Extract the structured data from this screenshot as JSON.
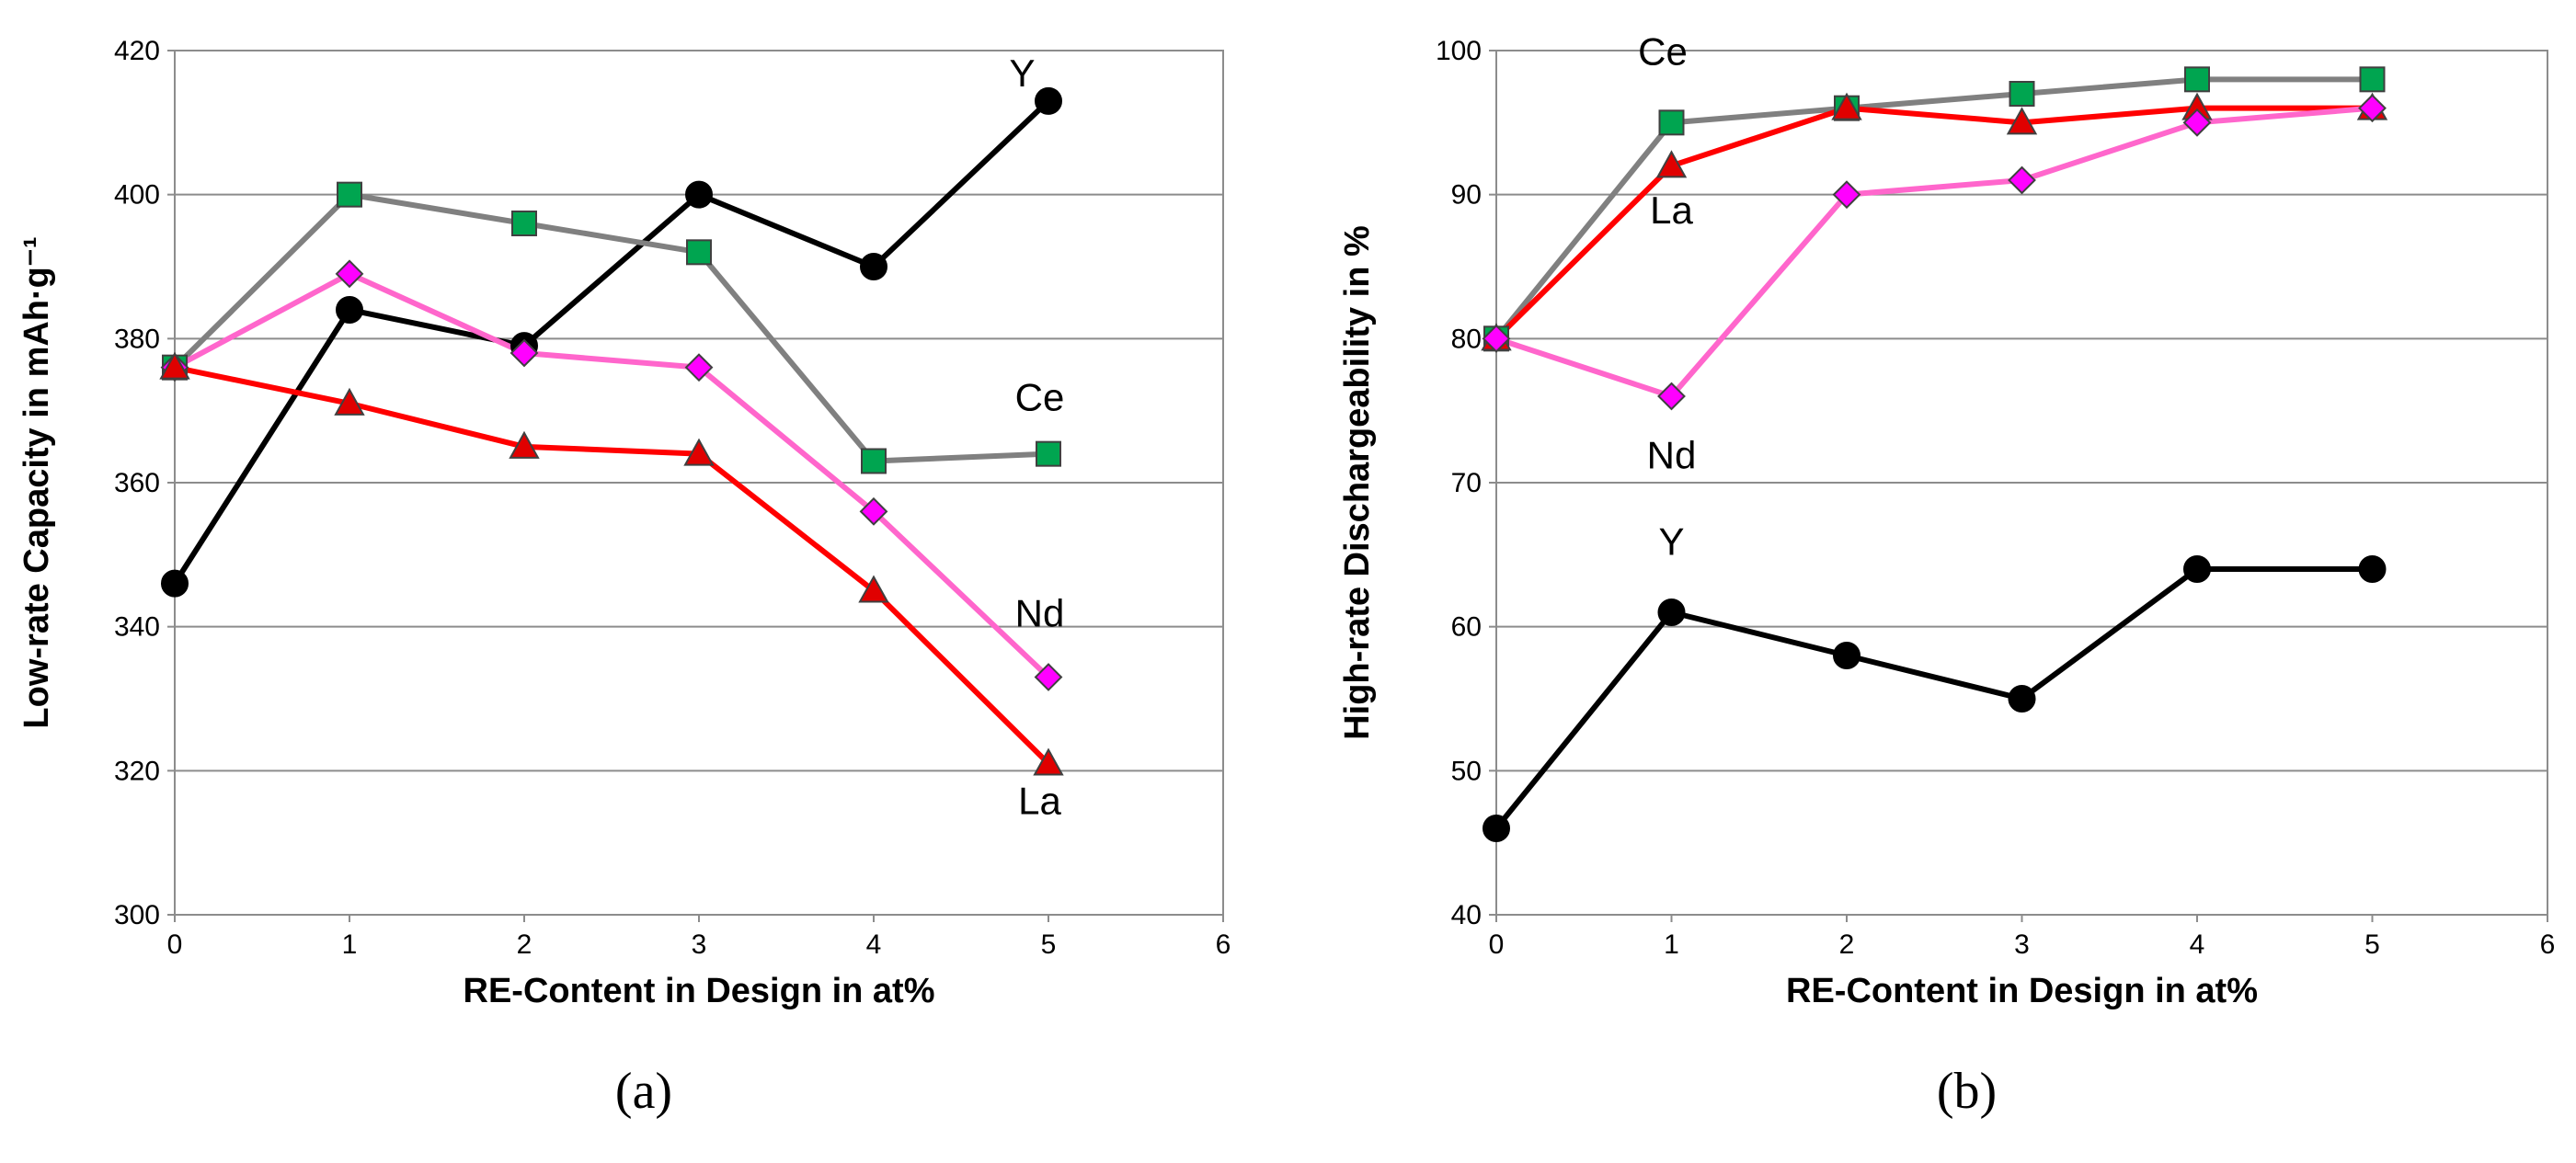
{
  "chart_data": [
    {
      "type": "line",
      "panel_label": "(a)",
      "title": "",
      "xlabel": "RE-Content in Design in at%",
      "ylabel": "Low-rate Capacity in mAh·g⁻¹",
      "xlim": [
        0,
        6
      ],
      "ylim": [
        300,
        420
      ],
      "xticks": [
        0,
        1,
        2,
        3,
        4,
        5,
        6
      ],
      "yticks": [
        300,
        320,
        340,
        360,
        380,
        400,
        420
      ],
      "grid": "horizontal",
      "series": [
        {
          "name": "Y",
          "color": "#000000",
          "marker": "circle",
          "x": [
            0,
            1,
            2,
            3,
            4,
            5
          ],
          "values": [
            346,
            384,
            379,
            400,
            390,
            413
          ]
        },
        {
          "name": "Ce",
          "color": "#808080",
          "marker": "square",
          "marker_fill": "#00a550",
          "x": [
            0,
            1,
            2,
            3,
            4,
            5
          ],
          "values": [
            376,
            400,
            396,
            392,
            363,
            364
          ]
        },
        {
          "name": "Nd",
          "color": "#ff66cc",
          "marker": "diamond",
          "marker_fill": "#ff00ff",
          "x": [
            0,
            1,
            2,
            3,
            4,
            5
          ],
          "values": [
            376,
            389,
            378,
            376,
            356,
            333
          ]
        },
        {
          "name": "La",
          "color": "#ff0000",
          "marker": "triangle",
          "marker_fill": "#e00000",
          "x": [
            0,
            1,
            2,
            3,
            4,
            5
          ],
          "values": [
            376,
            371,
            365,
            364,
            345,
            321
          ]
        }
      ],
      "series_labels": [
        {
          "text": "Y",
          "x": 4.85,
          "y": 415
        },
        {
          "text": "Ce",
          "x": 4.95,
          "y": 370
        },
        {
          "text": "Nd",
          "x": 4.95,
          "y": 340
        },
        {
          "text": "La",
          "x": 4.95,
          "y": 314
        }
      ]
    },
    {
      "type": "line",
      "panel_label": "(b)",
      "title": "",
      "xlabel": "RE-Content in Design in at%",
      "ylabel": "High-rate Dischargeability in %",
      "xlim": [
        0,
        6
      ],
      "ylim": [
        40,
        100
      ],
      "xticks": [
        0,
        1,
        2,
        3,
        4,
        5,
        6
      ],
      "yticks": [
        40,
        50,
        60,
        70,
        80,
        90,
        100
      ],
      "grid": "horizontal",
      "series": [
        {
          "name": "Ce",
          "color": "#808080",
          "marker": "square",
          "marker_fill": "#00a550",
          "x": [
            0,
            1,
            2,
            3,
            4,
            5
          ],
          "values": [
            80,
            95,
            96,
            97,
            98,
            98
          ]
        },
        {
          "name": "La",
          "color": "#ff0000",
          "marker": "triangle",
          "marker_fill": "#e00000",
          "x": [
            0,
            1,
            2,
            3,
            4,
            5
          ],
          "values": [
            80,
            92,
            96,
            95,
            96,
            96
          ]
        },
        {
          "name": "Nd",
          "color": "#ff66cc",
          "marker": "diamond",
          "marker_fill": "#ff00ff",
          "x": [
            0,
            1,
            2,
            3,
            4,
            5
          ],
          "values": [
            80,
            76,
            90,
            91,
            95,
            96
          ]
        },
        {
          "name": "Y",
          "color": "#000000",
          "marker": "circle",
          "x": [
            0,
            1,
            2,
            3,
            4,
            5
          ],
          "values": [
            46,
            61,
            58,
            55,
            64,
            64
          ]
        }
      ],
      "series_labels": [
        {
          "text": "Ce",
          "x": 0.95,
          "y": 99
        },
        {
          "text": "La",
          "x": 1.0,
          "y": 88
        },
        {
          "text": "Nd",
          "x": 1.0,
          "y": 71
        },
        {
          "text": "Y",
          "x": 1.0,
          "y": 65
        }
      ]
    }
  ]
}
